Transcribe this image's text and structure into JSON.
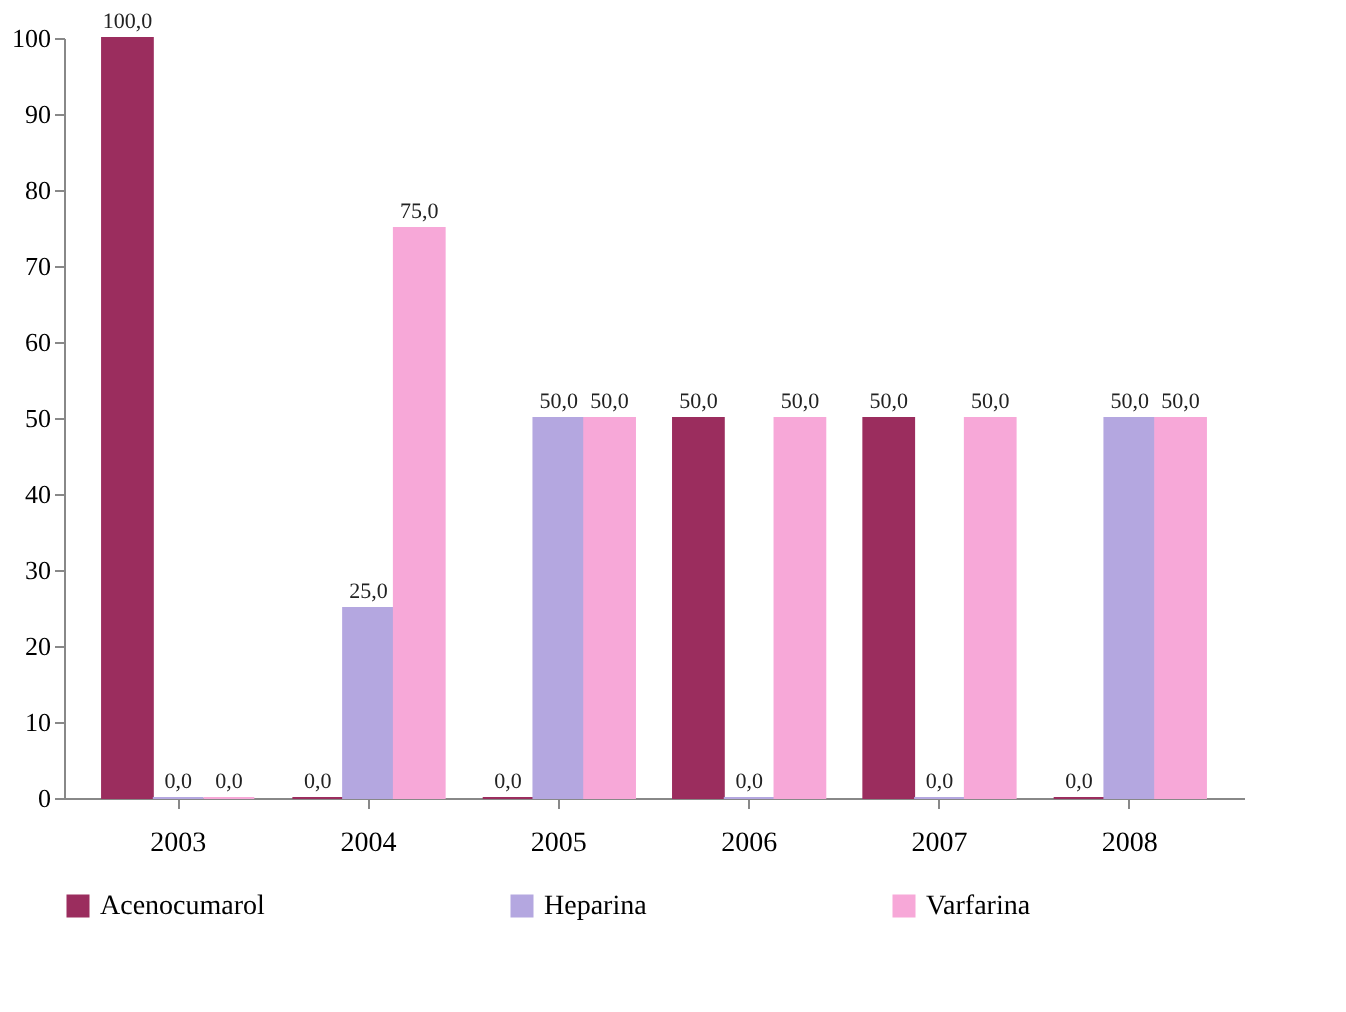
{
  "chart_data": {
    "type": "bar",
    "categories": [
      "2003",
      "2004",
      "2005",
      "2006",
      "2007",
      "2008"
    ],
    "series": [
      {
        "name": "Acenocumarol",
        "color": "#9b2d5e",
        "values": [
          100,
          0,
          0,
          50,
          50,
          0
        ],
        "value_labels": [
          "100,0",
          "0,0",
          "0,0",
          "50,0",
          "50,0",
          "0,0"
        ]
      },
      {
        "name": "Heparina",
        "color": "#b4a7e0",
        "values": [
          0,
          25,
          50,
          0,
          0,
          50
        ],
        "value_labels": [
          "0,0",
          "25,0",
          "50,0",
          "0,0",
          "0,0",
          "50,0"
        ]
      },
      {
        "name": "Varfarina",
        "color": "#f7a8d8",
        "values": [
          0,
          75,
          50,
          50,
          50,
          50
        ],
        "value_labels": [
          "0,0",
          "75,0",
          "50,0",
          "50,0",
          "50,0",
          "50,0"
        ]
      }
    ],
    "ylim": [
      0,
      100
    ],
    "yticks": [
      0,
      10,
      20,
      30,
      40,
      50,
      60,
      70,
      80,
      90,
      100
    ],
    "grid": false,
    "legend": "bottom"
  }
}
